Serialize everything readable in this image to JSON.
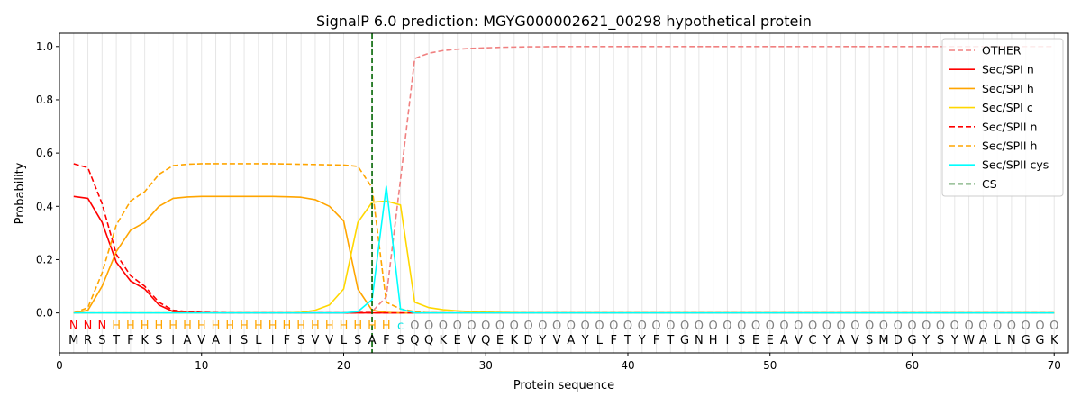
{
  "chart_data": {
    "type": "line",
    "title": "SignalP 6.0 prediction: MGYG000002621_00298 hypothetical protein",
    "xlabel": "Protein sequence",
    "ylabel": "Probability",
    "xlim": [
      0,
      71
    ],
    "ylim": [
      -0.15,
      1.05
    ],
    "x_ticks": [
      0,
      10,
      20,
      30,
      40,
      50,
      60,
      70
    ],
    "y_ticks": [
      0.0,
      0.2,
      0.4,
      0.6,
      0.8,
      1.0
    ],
    "legend_position": "top-right",
    "sequence": "MRSTFKSIAVAISLIFSVVLSAFSQQKEVQEKDYVAYLFTYFTGNHISEEAVCYAVSMDGYSYWALNGGK",
    "labels": "NNNHHHHHHHHHHHHHHHHHHHHcOOOOOOOOOOOOOOOOOOOOOOOOOOOOOOOOOOOOOOOOOOOOOOO",
    "label_colors": {
      "N": "#ff0000",
      "H": "#ffa500",
      "c": "#00e5e5",
      "O": "#808080"
    },
    "cleavage_site": 22,
    "x": [
      1,
      2,
      3,
      4,
      5,
      6,
      7,
      8,
      9,
      10,
      11,
      12,
      13,
      14,
      15,
      16,
      17,
      18,
      19,
      20,
      21,
      22,
      23,
      24,
      25,
      26,
      27,
      28,
      29,
      30,
      31,
      32,
      33,
      34,
      35,
      36,
      37,
      38,
      39,
      40,
      41,
      42,
      43,
      44,
      45,
      46,
      47,
      48,
      49,
      50,
      51,
      52,
      53,
      54,
      55,
      56,
      57,
      58,
      59,
      60,
      61,
      62,
      63,
      64,
      65,
      66,
      67,
      68,
      69,
      70
    ],
    "series": [
      {
        "name": "OTHER",
        "color": "#f08080",
        "dash": true,
        "values": [
          0,
          0,
          0,
          0,
          0,
          0,
          0,
          0,
          0,
          0,
          0,
          0,
          0,
          0,
          0,
          0,
          0,
          0,
          0,
          0,
          0.002,
          0.005,
          0.06,
          0.5,
          0.955,
          0.975,
          0.985,
          0.99,
          0.993,
          0.995,
          0.997,
          0.998,
          0.999,
          0.999,
          1,
          1,
          1,
          1,
          1,
          1,
          1,
          1,
          1,
          1,
          1,
          1,
          1,
          1,
          1,
          1,
          1,
          1,
          1,
          1,
          1,
          1,
          1,
          1,
          1,
          1,
          1,
          1,
          1,
          1,
          1,
          1,
          1,
          1,
          1,
          1
        ]
      },
      {
        "name": "Sec/SPI n",
        "color": "#ff0000",
        "dash": false,
        "values": [
          0.437,
          0.43,
          0.34,
          0.19,
          0.12,
          0.09,
          0.03,
          0.005,
          0.002,
          0.001,
          0,
          0,
          0,
          0,
          0,
          0,
          0,
          0,
          0,
          0,
          0,
          0,
          0,
          0,
          0,
          0,
          0,
          0,
          0,
          0,
          0,
          0,
          0,
          0,
          0,
          0,
          0,
          0,
          0,
          0,
          0,
          0,
          0,
          0,
          0,
          0,
          0,
          0,
          0,
          0,
          0,
          0,
          0,
          0,
          0,
          0,
          0,
          0,
          0,
          0,
          0,
          0,
          0,
          0,
          0,
          0,
          0,
          0,
          0,
          0
        ]
      },
      {
        "name": "Sec/SPI h",
        "color": "#ffa500",
        "dash": false,
        "values": [
          0,
          0.01,
          0.1,
          0.23,
          0.31,
          0.34,
          0.4,
          0.43,
          0.435,
          0.437,
          0.437,
          0.437,
          0.437,
          0.437,
          0.437,
          0.436,
          0.434,
          0.425,
          0.4,
          0.345,
          0.09,
          0.01,
          0.002,
          0,
          0,
          0,
          0,
          0,
          0,
          0,
          0,
          0,
          0,
          0,
          0,
          0,
          0,
          0,
          0,
          0,
          0,
          0,
          0,
          0,
          0,
          0,
          0,
          0,
          0,
          0,
          0,
          0,
          0,
          0,
          0,
          0,
          0,
          0,
          0,
          0,
          0,
          0,
          0,
          0,
          0,
          0,
          0,
          0,
          0,
          0
        ]
      },
      {
        "name": "Sec/SPI c",
        "color": "#ffd700",
        "dash": false,
        "values": [
          0,
          0,
          0,
          0,
          0,
          0,
          0,
          0,
          0,
          0,
          0,
          0,
          0,
          0,
          0,
          0,
          0.002,
          0.01,
          0.03,
          0.09,
          0.34,
          0.415,
          0.42,
          0.405,
          0.04,
          0.02,
          0.012,
          0.008,
          0.005,
          0.003,
          0.002,
          0.001,
          0,
          0,
          0,
          0,
          0,
          0,
          0,
          0,
          0,
          0,
          0,
          0,
          0,
          0,
          0,
          0,
          0,
          0,
          0,
          0,
          0,
          0,
          0,
          0,
          0,
          0,
          0,
          0,
          0,
          0,
          0,
          0,
          0,
          0,
          0,
          0,
          0,
          0
        ]
      },
      {
        "name": "Sec/SPII n",
        "color": "#ff0000",
        "dash": true,
        "values": [
          0.56,
          0.545,
          0.41,
          0.22,
          0.14,
          0.1,
          0.04,
          0.01,
          0.005,
          0.002,
          0.001,
          0,
          0,
          0,
          0,
          0,
          0,
          0,
          0,
          0,
          0,
          0,
          0,
          0,
          0,
          0,
          0,
          0,
          0,
          0,
          0,
          0,
          0,
          0,
          0,
          0,
          0,
          0,
          0,
          0,
          0,
          0,
          0,
          0,
          0,
          0,
          0,
          0,
          0,
          0,
          0,
          0,
          0,
          0,
          0,
          0,
          0,
          0,
          0,
          0,
          0,
          0,
          0,
          0,
          0,
          0,
          0,
          0,
          0,
          0
        ]
      },
      {
        "name": "Sec/SPII h",
        "color": "#ffa500",
        "dash": true,
        "values": [
          0,
          0.02,
          0.15,
          0.33,
          0.42,
          0.455,
          0.52,
          0.553,
          0.558,
          0.56,
          0.56,
          0.56,
          0.56,
          0.56,
          0.56,
          0.559,
          0.558,
          0.557,
          0.556,
          0.555,
          0.55,
          0.47,
          0.04,
          0.015,
          0.005,
          0,
          0,
          0,
          0,
          0,
          0,
          0,
          0,
          0,
          0,
          0,
          0,
          0,
          0,
          0,
          0,
          0,
          0,
          0,
          0,
          0,
          0,
          0,
          0,
          0,
          0,
          0,
          0,
          0,
          0,
          0,
          0,
          0,
          0,
          0,
          0,
          0,
          0,
          0,
          0,
          0,
          0,
          0,
          0,
          0
        ]
      },
      {
        "name": "Sec/SPII cys",
        "color": "#00ffff",
        "dash": false,
        "values": [
          0,
          0,
          0,
          0,
          0,
          0,
          0,
          0,
          0,
          0,
          0,
          0,
          0,
          0,
          0,
          0,
          0,
          0,
          0,
          0,
          0.005,
          0.05,
          0.475,
          0.015,
          0,
          0,
          0,
          0,
          0,
          0,
          0,
          0,
          0,
          0,
          0,
          0,
          0,
          0,
          0,
          0,
          0,
          0,
          0,
          0,
          0,
          0,
          0,
          0,
          0,
          0,
          0,
          0,
          0,
          0,
          0,
          0,
          0,
          0,
          0,
          0,
          0,
          0,
          0,
          0,
          0,
          0,
          0,
          0,
          0,
          0
        ]
      }
    ],
    "legend": [
      {
        "name": "OTHER",
        "color": "#f08080",
        "dash": true
      },
      {
        "name": "Sec/SPI n",
        "color": "#ff0000",
        "dash": false
      },
      {
        "name": "Sec/SPI h",
        "color": "#ffa500",
        "dash": false
      },
      {
        "name": "Sec/SPI c",
        "color": "#ffd700",
        "dash": false
      },
      {
        "name": "Sec/SPII n",
        "color": "#ff0000",
        "dash": true
      },
      {
        "name": "Sec/SPII h",
        "color": "#ffa500",
        "dash": true
      },
      {
        "name": "Sec/SPII cys",
        "color": "#00ffff",
        "dash": false
      },
      {
        "name": "CS",
        "color": "#006400",
        "dash": true
      }
    ]
  }
}
